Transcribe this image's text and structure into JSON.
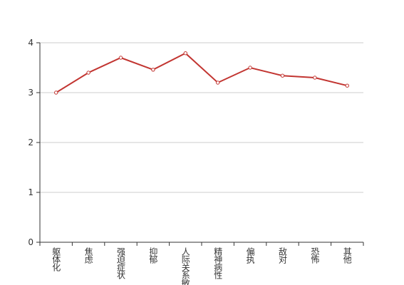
{
  "chart_data": {
    "type": "line",
    "categories": [
      "躯体化",
      "焦虑",
      "强迫症状",
      "抑郁",
      "人际关系敏感",
      "精神病性",
      "偏执",
      "敌对",
      "恐怖",
      "其他"
    ],
    "series": [
      {
        "color": "#c23531",
        "values": [
          3.0,
          3.4,
          3.7,
          3.46,
          3.79,
          3.2,
          3.5,
          3.34,
          3.3,
          3.14
        ]
      }
    ],
    "ylim": [
      0,
      4
    ],
    "yticks": [
      0,
      1,
      2,
      3,
      4
    ],
    "grid": true
  }
}
